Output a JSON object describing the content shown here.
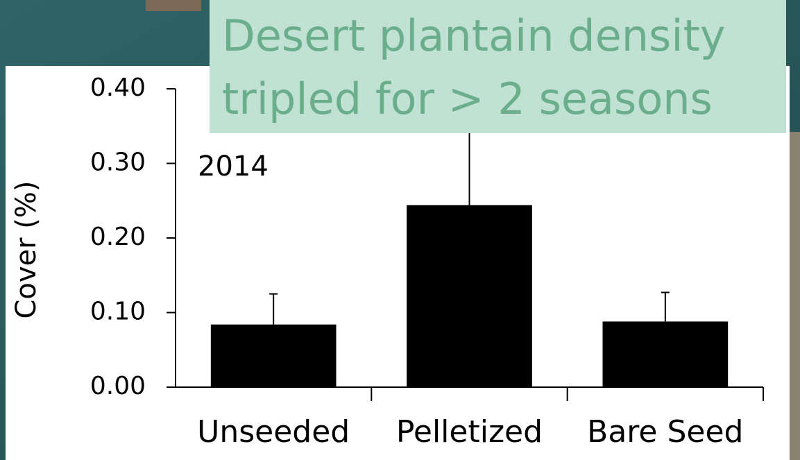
{
  "chart_data": {
    "type": "bar",
    "title": [
      "Desert plantain density",
      "tripled for > 2 seasons"
    ],
    "annotation": "2014",
    "y_label": "Cover (%)",
    "categories": [
      "Unseeded",
      "Pelletized",
      "Bare Seed"
    ],
    "values": [
      0.084,
      0.244,
      0.088
    ],
    "errors": [
      0.041,
      0.11,
      0.039
    ],
    "color": "#000000",
    "ylim": [
      0,
      0.4
    ],
    "yticks": [
      {
        "value": 0,
        "label": "0.00"
      },
      {
        "value": 0.1,
        "label": "0.10"
      },
      {
        "value": 0.2,
        "label": "0.20"
      },
      {
        "value": 0.3,
        "label": "0.30"
      },
      {
        "value": 0.4,
        "label": "0.40"
      }
    ]
  }
}
